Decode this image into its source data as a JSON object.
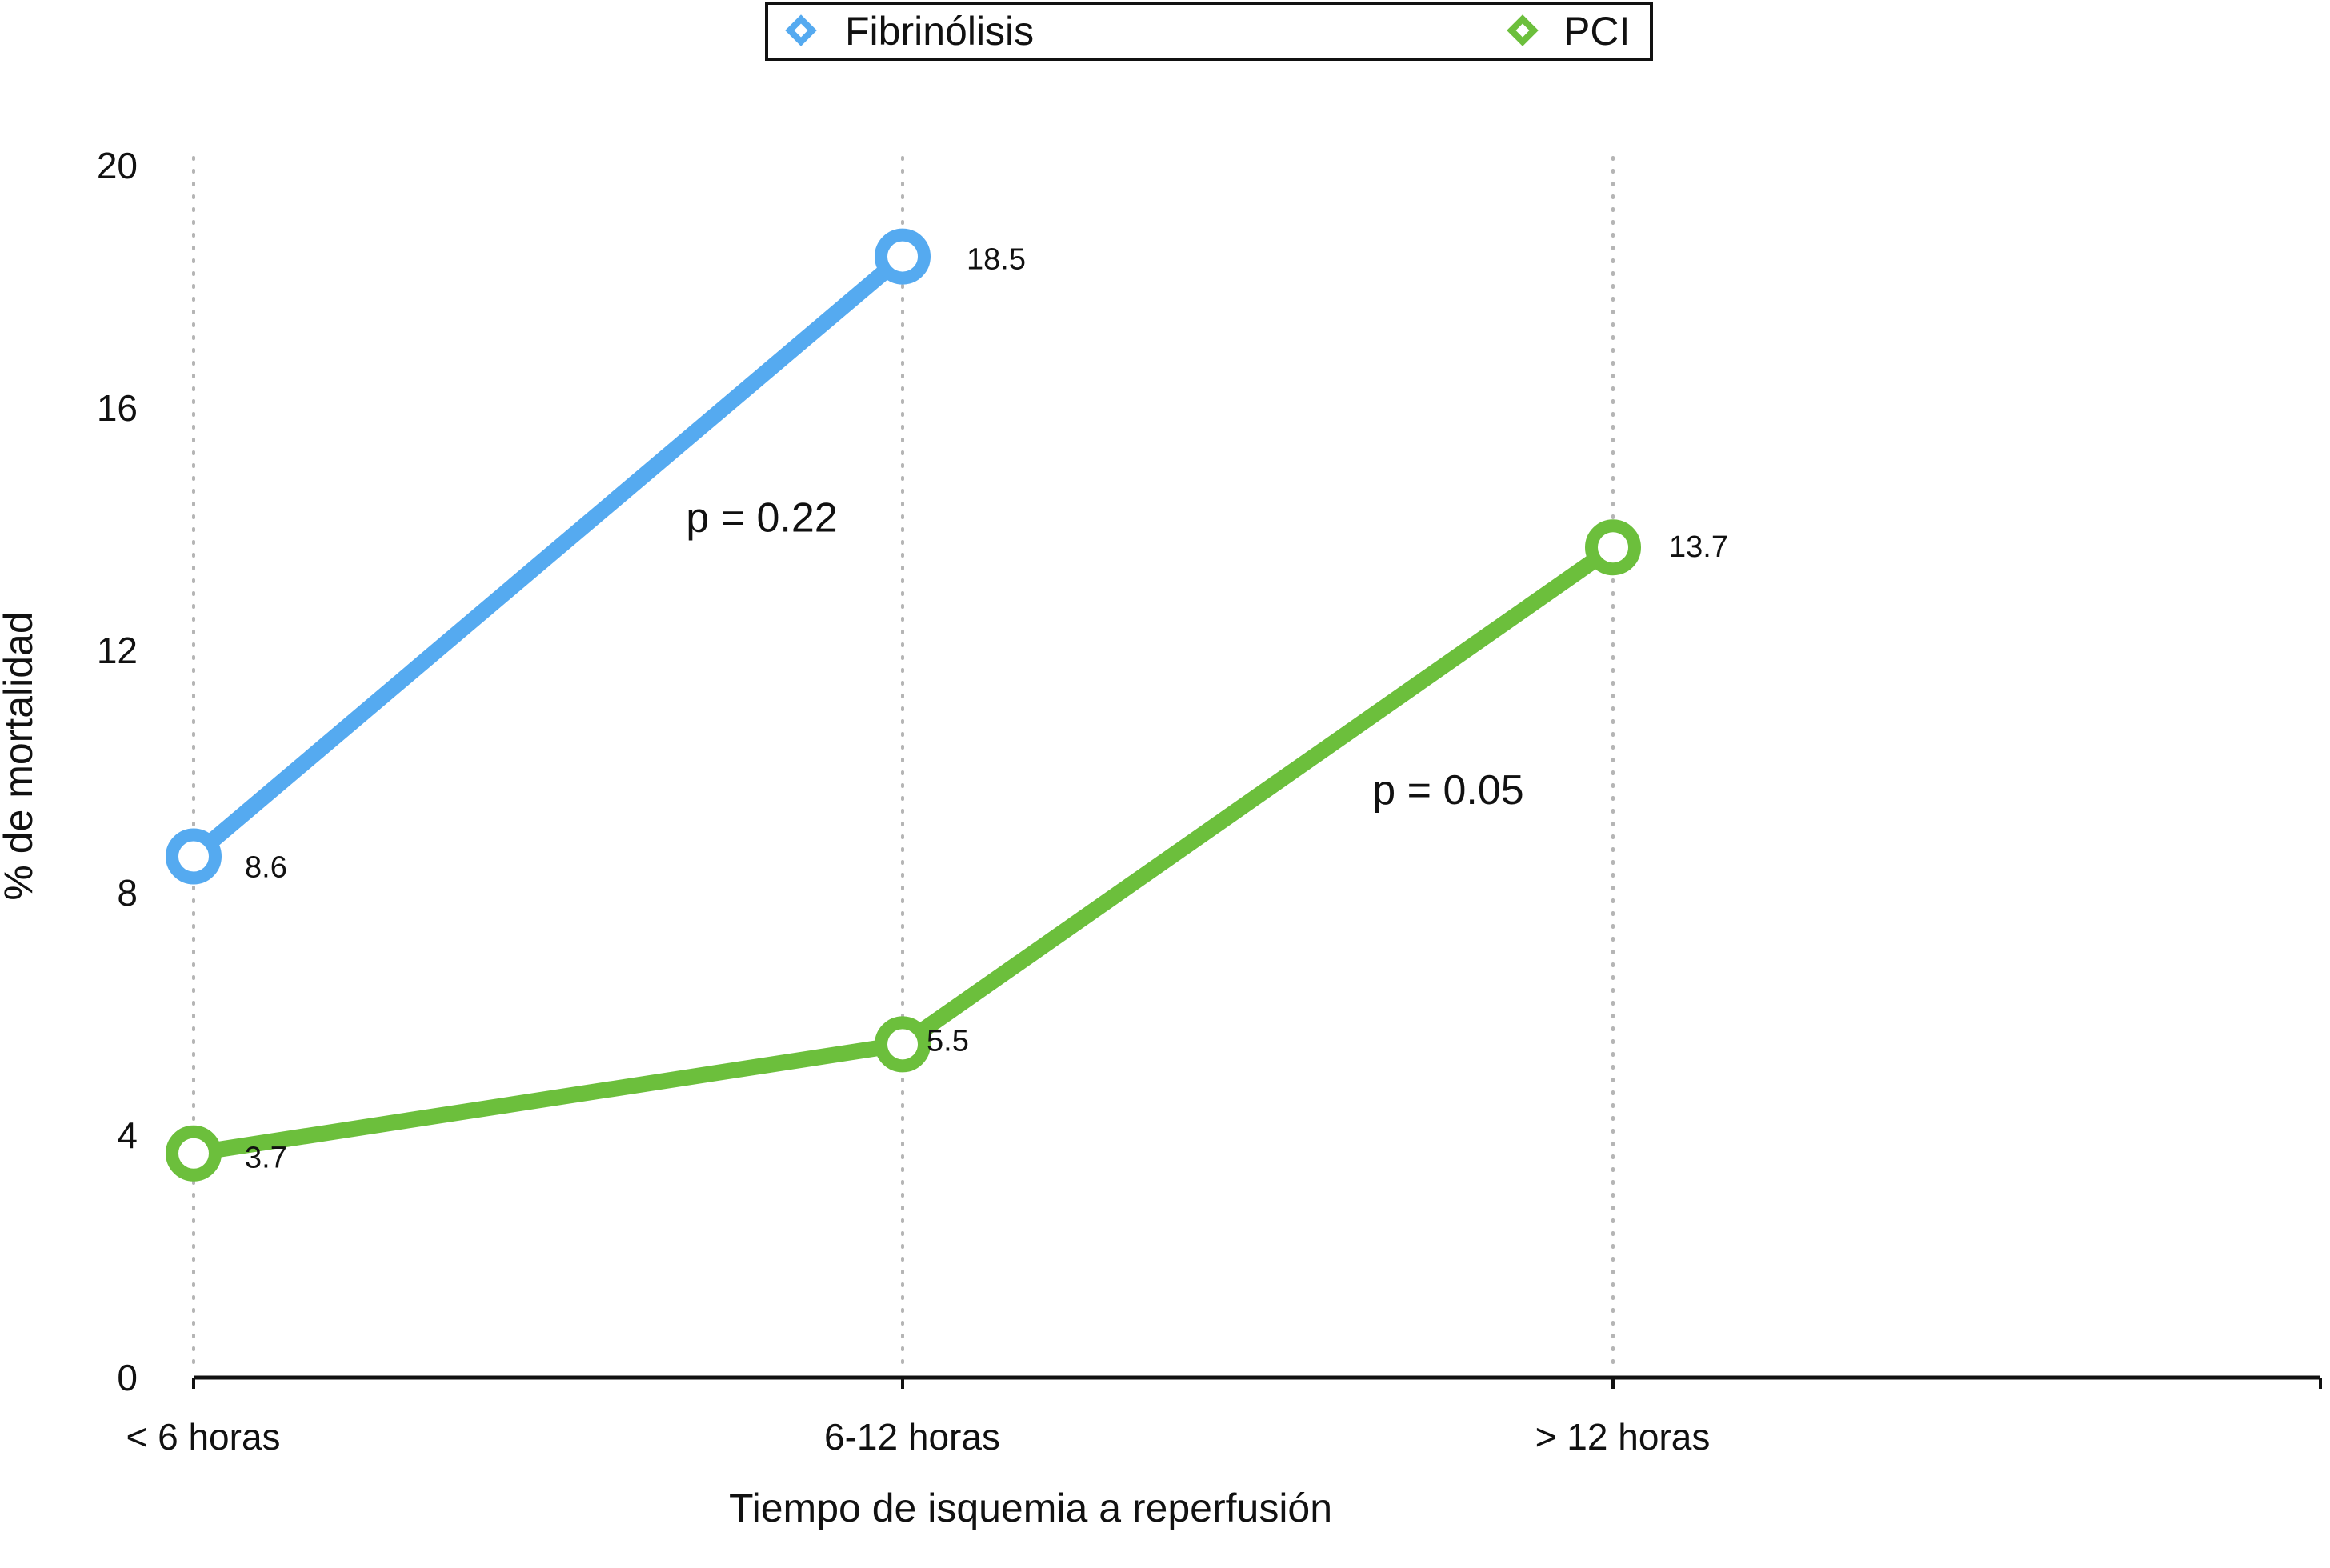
{
  "chart_data": {
    "type": "line",
    "xlabel": "Tiempo de isquemia a reperfusión",
    "ylabel": "% de mortalidad",
    "categories": [
      "< 6 horas",
      "6-12 horas",
      "> 12 horas"
    ],
    "ylim": [
      0,
      20
    ],
    "yticks": [
      "0",
      "4",
      "8",
      "12",
      "16",
      "20"
    ],
    "grid": "vertical dotted",
    "legend_position": "top",
    "series": [
      {
        "name": "Fibrinólisis",
        "color": "#55aaf0",
        "values": [
          8.6,
          18.5,
          null
        ],
        "labels": [
          "8.6",
          "18.5",
          ""
        ]
      },
      {
        "name": "PCI",
        "color": "#6cbf3c",
        "values": [
          3.7,
          5.5,
          13.7
        ],
        "labels": [
          "3.7",
          "5.5",
          "13.7"
        ]
      }
    ],
    "annotations": [
      {
        "text": "p = 0.22",
        "x": "6-12 horas",
        "y": 14.2
      },
      {
        "text": "p = 0.05",
        "x": "> 12 horas",
        "y": 9.7
      }
    ]
  }
}
